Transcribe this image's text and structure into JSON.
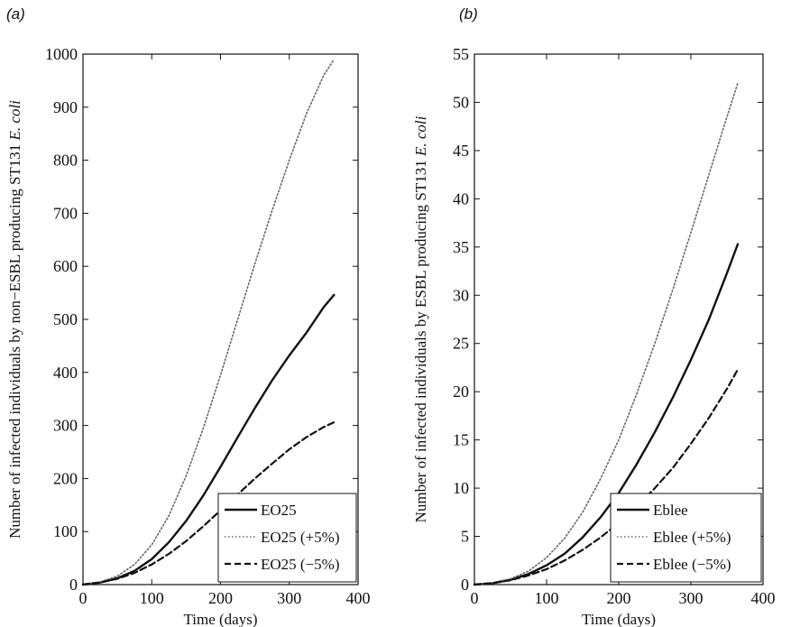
{
  "chart_data": [
    {
      "type": "line",
      "panel_label": "(a)",
      "xlabel": "Time (days)",
      "ylabel_prefix": "Number of infected individuals by non−ESBL producing ST131 ",
      "ylabel_italic": "E. coli",
      "xlim": [
        0,
        400
      ],
      "ylim": [
        0,
        1000
      ],
      "xticks": [
        "0",
        "100",
        "200",
        "300",
        "400"
      ],
      "yticks": [
        "0",
        "100",
        "200",
        "300",
        "400",
        "500",
        "600",
        "700",
        "800",
        "900",
        "1000"
      ],
      "grid": false,
      "legend_position": "bottom-right",
      "series": [
        {
          "name": "EO25",
          "style": "solid",
          "x": [
            0,
            25,
            50,
            75,
            100,
            125,
            150,
            175,
            200,
            225,
            250,
            275,
            300,
            325,
            350,
            365
          ],
          "y": [
            0,
            4,
            12,
            26,
            48,
            80,
            120,
            168,
            222,
            278,
            333,
            385,
            432,
            475,
            523,
            546
          ]
        },
        {
          "name": "EO25 (+5%)",
          "style": "dotted",
          "x": [
            0,
            25,
            50,
            75,
            100,
            125,
            150,
            175,
            200,
            225,
            250,
            275,
            300,
            325,
            350,
            365
          ],
          "y": [
            0,
            5,
            16,
            38,
            75,
            130,
            205,
            295,
            395,
            500,
            605,
            705,
            800,
            888,
            960,
            990
          ]
        },
        {
          "name": "EO25 (−5%)",
          "style": "dashed",
          "x": [
            0,
            25,
            50,
            75,
            100,
            125,
            150,
            175,
            200,
            225,
            250,
            275,
            300,
            325,
            350,
            365
          ],
          "y": [
            0,
            4,
            11,
            22,
            38,
            58,
            82,
            110,
            140,
            170,
            200,
            228,
            255,
            278,
            297,
            306
          ]
        }
      ]
    },
    {
      "type": "line",
      "panel_label": "(b)",
      "xlabel": "Time (days)",
      "ylabel_prefix": "Number of infected individuals by ESBL producing ST131 ",
      "ylabel_italic": "E. coli",
      "xlim": [
        0,
        400
      ],
      "ylim": [
        0,
        55
      ],
      "xticks": [
        "0",
        "100",
        "200",
        "300",
        "400"
      ],
      "yticks": [
        "0",
        "5",
        "10",
        "15",
        "20",
        "25",
        "30",
        "35",
        "40",
        "45",
        "50",
        "55"
      ],
      "grid": false,
      "legend_position": "bottom-right",
      "series": [
        {
          "name": "Eblee",
          "style": "solid",
          "x": [
            0,
            25,
            50,
            75,
            100,
            125,
            150,
            175,
            200,
            225,
            250,
            275,
            300,
            325,
            350,
            365
          ],
          "y": [
            0,
            0.15,
            0.5,
            1.1,
            2.0,
            3.2,
            4.9,
            7.0,
            9.5,
            12.5,
            15.8,
            19.4,
            23.3,
            27.5,
            32.3,
            35.3
          ]
        },
        {
          "name": "Eblee (+5%)",
          "style": "dotted",
          "x": [
            0,
            25,
            50,
            75,
            100,
            125,
            150,
            175,
            200,
            225,
            250,
            275,
            300,
            325,
            350,
            365
          ],
          "y": [
            0,
            0.2,
            0.6,
            1.4,
            2.8,
            4.8,
            7.5,
            11.0,
            15.0,
            19.8,
            25.0,
            30.6,
            36.5,
            42.5,
            48.5,
            52.0
          ]
        },
        {
          "name": "Eblee (−5%)",
          "style": "dashed",
          "x": [
            0,
            25,
            50,
            75,
            100,
            125,
            150,
            175,
            200,
            225,
            250,
            275,
            300,
            325,
            350,
            365
          ],
          "y": [
            0,
            0.15,
            0.45,
            0.95,
            1.6,
            2.5,
            3.6,
            4.9,
            6.4,
            8.1,
            10.0,
            12.1,
            14.6,
            17.3,
            20.3,
            22.3
          ]
        }
      ]
    }
  ]
}
